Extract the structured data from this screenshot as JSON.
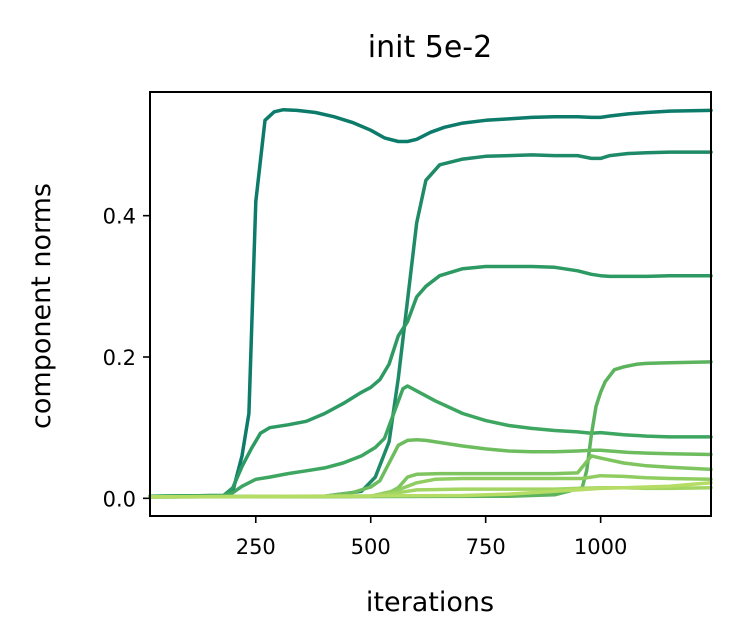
{
  "chart_data": {
    "type": "line",
    "title": "init 5e-2",
    "xlabel": "iterations",
    "ylabel": "component norms",
    "xlim": [
      20,
      1240
    ],
    "ylim": [
      -0.025,
      0.575
    ],
    "xticks": [
      250,
      500,
      750,
      1000
    ],
    "xtick_labels": [
      "250",
      "500",
      "750",
      "1000"
    ],
    "yticks": [
      0.0,
      0.2,
      0.4
    ],
    "ytick_labels": [
      "0.0",
      "0.2",
      "0.4"
    ],
    "grid": false,
    "legend": "none",
    "series": [
      {
        "color": "#0c7b6a",
        "x": [
          20,
          180,
          200,
          220,
          235,
          250,
          270,
          290,
          310,
          340,
          380,
          420,
          460,
          500,
          530,
          560,
          580,
          600,
          630,
          660,
          700,
          750,
          800,
          850,
          900,
          950,
          980,
          1000,
          1020,
          1060,
          1100,
          1150,
          1240
        ],
        "y": [
          0.003,
          0.004,
          0.01,
          0.06,
          0.12,
          0.42,
          0.535,
          0.547,
          0.55,
          0.549,
          0.546,
          0.54,
          0.532,
          0.521,
          0.51,
          0.505,
          0.505,
          0.508,
          0.518,
          0.525,
          0.531,
          0.535,
          0.537,
          0.539,
          0.54,
          0.54,
          0.539,
          0.539,
          0.541,
          0.544,
          0.546,
          0.548,
          0.549
        ]
      },
      {
        "color": "#1e8a68",
        "x": [
          20,
          400,
          480,
          510,
          540,
          560,
          580,
          600,
          620,
          650,
          700,
          750,
          800,
          850,
          900,
          950,
          980,
          1000,
          1020,
          1060,
          1100,
          1150,
          1240
        ],
        "y": [
          0.002,
          0.003,
          0.01,
          0.03,
          0.08,
          0.17,
          0.28,
          0.39,
          0.45,
          0.472,
          0.48,
          0.484,
          0.485,
          0.486,
          0.485,
          0.485,
          0.481,
          0.481,
          0.485,
          0.488,
          0.489,
          0.49,
          0.49
        ]
      },
      {
        "color": "#2e9a63",
        "x": [
          20,
          180,
          200,
          220,
          240,
          260,
          280,
          320,
          360,
          400,
          440,
          480,
          500,
          520,
          540,
          560,
          580,
          600,
          620,
          650,
          700,
          750,
          800,
          850,
          900,
          950,
          980,
          1000,
          1020,
          1060,
          1100,
          1150,
          1240
        ],
        "y": [
          0.003,
          0.004,
          0.015,
          0.045,
          0.07,
          0.092,
          0.1,
          0.104,
          0.109,
          0.12,
          0.134,
          0.15,
          0.157,
          0.168,
          0.19,
          0.23,
          0.25,
          0.285,
          0.3,
          0.315,
          0.325,
          0.328,
          0.328,
          0.328,
          0.327,
          0.322,
          0.317,
          0.315,
          0.314,
          0.314,
          0.314,
          0.315,
          0.315
        ]
      },
      {
        "color": "#3da660",
        "x": [
          20,
          180,
          200,
          220,
          250,
          280,
          320,
          360,
          400,
          440,
          480,
          510,
          530,
          550,
          570,
          580,
          600,
          640,
          700,
          750,
          800,
          850,
          900,
          950,
          980,
          1000,
          1050,
          1100,
          1150,
          1240
        ],
        "y": [
          0.003,
          0.004,
          0.008,
          0.017,
          0.027,
          0.03,
          0.035,
          0.039,
          0.043,
          0.05,
          0.06,
          0.072,
          0.085,
          0.12,
          0.155,
          0.159,
          0.152,
          0.138,
          0.12,
          0.11,
          0.103,
          0.099,
          0.096,
          0.094,
          0.092,
          0.093,
          0.09,
          0.088,
          0.087,
          0.087
        ]
      },
      {
        "color": "#5bb35e",
        "x": [
          20,
          800,
          900,
          960,
          970,
          980,
          990,
          1000,
          1010,
          1030,
          1050,
          1080,
          1100,
          1150,
          1240
        ],
        "y": [
          0.002,
          0.003,
          0.005,
          0.015,
          0.04,
          0.09,
          0.13,
          0.15,
          0.165,
          0.182,
          0.186,
          0.19,
          0.191,
          0.192,
          0.193
        ]
      },
      {
        "color": "#6dbd5f",
        "x": [
          20,
          400,
          460,
          500,
          520,
          540,
          560,
          580,
          600,
          620,
          650,
          700,
          750,
          800,
          850,
          900,
          950,
          980,
          1000,
          1020,
          1060,
          1100,
          1150,
          1240
        ],
        "y": [
          0.002,
          0.003,
          0.008,
          0.016,
          0.025,
          0.05,
          0.075,
          0.082,
          0.083,
          0.082,
          0.079,
          0.074,
          0.07,
          0.067,
          0.066,
          0.066,
          0.067,
          0.068,
          0.068,
          0.067,
          0.065,
          0.064,
          0.063,
          0.062
        ]
      },
      {
        "color": "#7ec55f",
        "x": [
          20,
          500,
          540,
          560,
          580,
          600,
          650,
          700,
          800,
          900,
          950,
          980,
          1000,
          1050,
          1100,
          1150,
          1240
        ],
        "y": [
          0.002,
          0.003,
          0.008,
          0.015,
          0.03,
          0.034,
          0.035,
          0.035,
          0.035,
          0.035,
          0.036,
          0.06,
          0.057,
          0.05,
          0.046,
          0.044,
          0.041
        ]
      },
      {
        "color": "#8fcd61",
        "x": [
          20,
          500,
          560,
          600,
          640,
          700,
          800,
          900,
          960,
          1000,
          1050,
          1100,
          1150,
          1240
        ],
        "y": [
          0.002,
          0.003,
          0.012,
          0.022,
          0.027,
          0.028,
          0.028,
          0.028,
          0.028,
          0.032,
          0.031,
          0.029,
          0.028,
          0.027
        ]
      },
      {
        "color": "#a3d563",
        "x": [
          20,
          500,
          560,
          600,
          700,
          800,
          900,
          950,
          1000,
          1050,
          1100,
          1150,
          1240
        ],
        "y": [
          0.002,
          0.003,
          0.008,
          0.012,
          0.013,
          0.013,
          0.013,
          0.014,
          0.015,
          0.015,
          0.014,
          0.014,
          0.015
        ]
      },
      {
        "color": "#b5dc65",
        "x": [
          20,
          700,
          800,
          850,
          900,
          950,
          1000,
          1050,
          1100,
          1150,
          1200,
          1240
        ],
        "y": [
          0.002,
          0.004,
          0.006,
          0.008,
          0.01,
          0.012,
          0.014,
          0.015,
          0.016,
          0.017,
          0.02,
          0.022
        ]
      }
    ]
  }
}
